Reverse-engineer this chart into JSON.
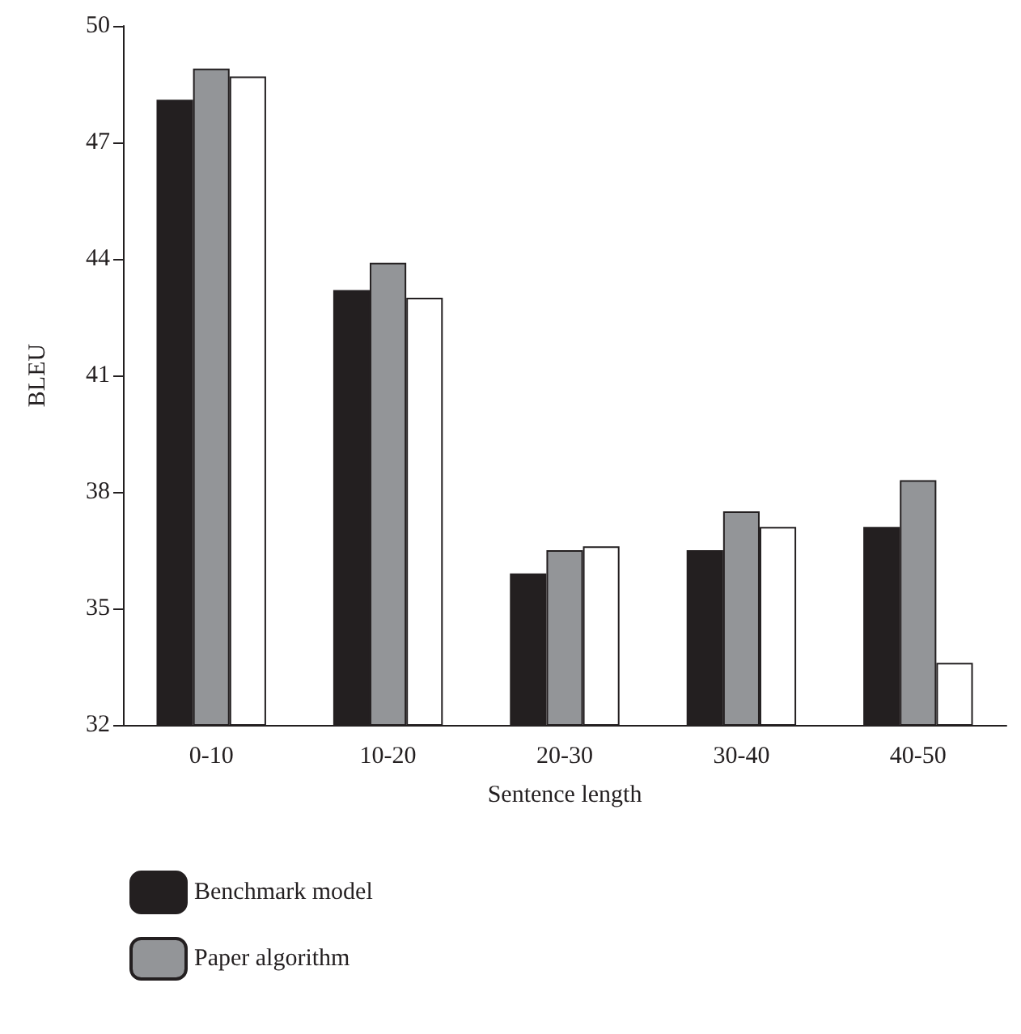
{
  "chart_data": {
    "type": "bar",
    "xlabel": "Sentence length",
    "ylabel": "BLEU",
    "categories": [
      "0-10",
      "10-20",
      "20-30",
      "30-40",
      "40-50"
    ],
    "series": [
      {
        "name": "Benchmark model",
        "color": "#231f20",
        "values": [
          48.1,
          43.2,
          35.9,
          36.5,
          37.1
        ]
      },
      {
        "name": "Paper algorithm",
        "color": "#939598",
        "values": [
          48.9,
          43.9,
          36.5,
          37.5,
          38.3
        ]
      },
      {
        "color": "#ffffff",
        "values": [
          48.7,
          43.0,
          36.6,
          37.1,
          33.6
        ]
      }
    ],
    "ylim": [
      32,
      50
    ],
    "yticks": [
      32,
      35,
      38,
      41,
      44,
      47,
      50
    ],
    "grid": false,
    "legend": "bottom left"
  }
}
